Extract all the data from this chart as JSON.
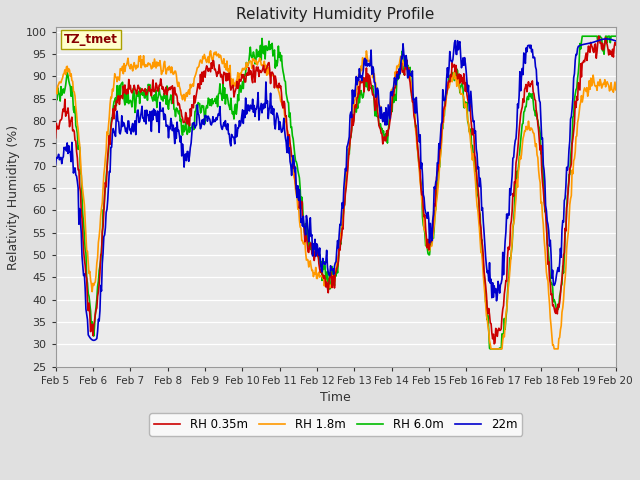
{
  "title": "Relativity Humidity Profile",
  "xlabel": "Time",
  "ylabel": "Relativity Humidity (%)",
  "ylim": [
    25,
    101
  ],
  "yticks": [
    25,
    30,
    35,
    40,
    45,
    50,
    55,
    60,
    65,
    70,
    75,
    80,
    85,
    90,
    95,
    100
  ],
  "legend_labels": [
    "RH 0.35m",
    "RH 1.8m",
    "RH 6.0m",
    "22m"
  ],
  "line_colors": [
    "#cc0000",
    "#ff9900",
    "#00bb00",
    "#0000cc"
  ],
  "line_width": 1.2,
  "bg_color": "#e0e0e0",
  "plot_bg_color": "#ebebeb",
  "annotation_text": "TZ_tmet",
  "annotation_bg": "#ffffcc",
  "annotation_border": "#aaa000",
  "annotation_text_color": "#880000",
  "xtick_labels": [
    "Feb 5",
    "Feb 6",
    "Feb 7",
    "Feb 8",
    "Feb 9",
    "Feb 10",
    "Feb 11",
    "Feb 12",
    "Feb 13",
    "Feb 14",
    "Feb 15",
    "Feb 16",
    "Feb 17",
    "Feb 18",
    "Feb 19",
    "Feb 20"
  ],
  "n_points": 720
}
